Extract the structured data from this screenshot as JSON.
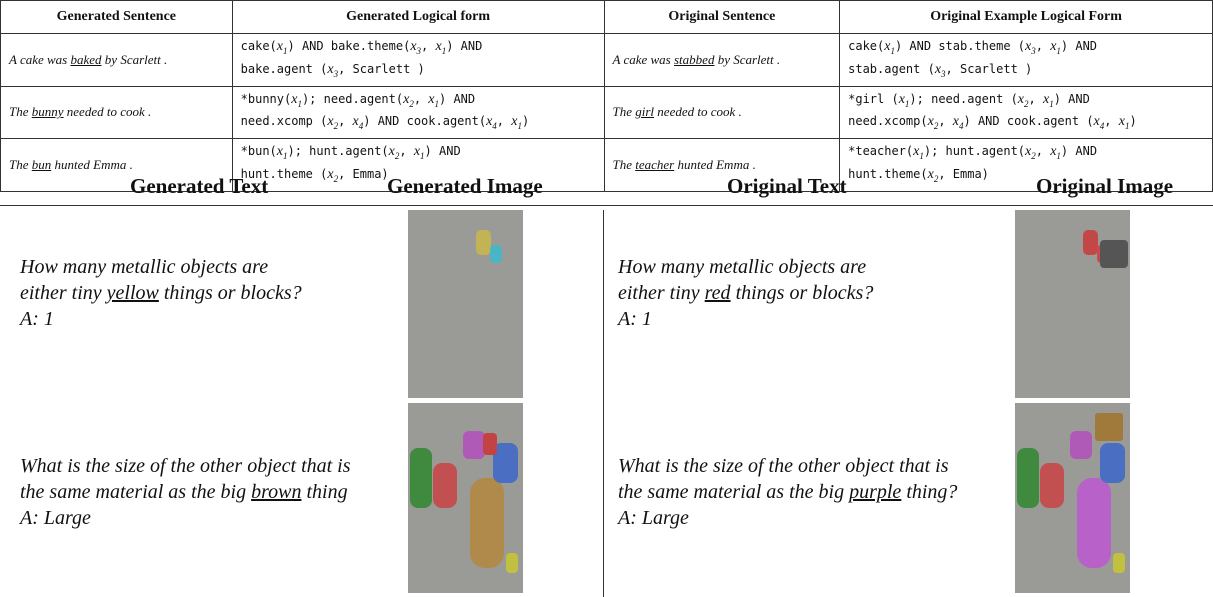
{
  "table": {
    "header": [
      "Generated Sentence",
      "Generated Logical form",
      "Original Sentence",
      "Original Example Logical Form"
    ],
    "rows": [
      {
        "generated_sentence": {
          "before": "A cake was ",
          "underlined": "baked",
          "after": " by Scarlett ."
        },
        "generated_logical_form": [
          [
            "cake(",
            {
              "var": "x",
              "sub": "1"
            },
            ") AND bake.theme(",
            {
              "var": "x",
              "sub": "3"
            },
            ", ",
            {
              "var": "x",
              "sub": "1"
            },
            ") AND"
          ],
          [
            "bake.agent (",
            {
              "var": "x",
              "sub": "3"
            },
            ", Scarlett )"
          ]
        ],
        "original_sentence": {
          "before": "A cake was ",
          "underlined": "stabbed",
          "after": " by Scarlett ."
        },
        "original_logical_form": [
          [
            "cake(",
            {
              "var": "x",
              "sub": "1"
            },
            ") AND stab.theme (",
            {
              "var": "x",
              "sub": "3"
            },
            ", ",
            {
              "var": "x",
              "sub": "1"
            },
            ") AND"
          ],
          [
            "stab.agent (",
            {
              "var": "x",
              "sub": "3"
            },
            ", Scarlett )"
          ]
        ]
      },
      {
        "generated_sentence": {
          "before": "The ",
          "underlined": "bunny",
          "after": " needed to cook ."
        },
        "generated_logical_form": [
          [
            "*bunny(",
            {
              "var": "x",
              "sub": "1"
            },
            "); need.agent(",
            {
              "var": "x",
              "sub": "2"
            },
            ", ",
            {
              "var": "x",
              "sub": "1"
            },
            ") AND"
          ],
          [
            "need.xcomp (",
            {
              "var": "x",
              "sub": "2"
            },
            ", ",
            {
              "var": "x",
              "sub": "4"
            },
            ") AND cook.agent(",
            {
              "var": "x",
              "sub": "4"
            },
            ", ",
            {
              "var": "x",
              "sub": "1"
            },
            ")"
          ]
        ],
        "original_sentence": {
          "before": "The ",
          "underlined": "girl",
          "after": " needed to cook ."
        },
        "original_logical_form": [
          [
            "*girl (",
            {
              "var": "x",
              "sub": "1"
            },
            "); need.agent (",
            {
              "var": "x",
              "sub": "2"
            },
            ", ",
            {
              "var": "x",
              "sub": "1"
            },
            ") AND"
          ],
          [
            "need.xcomp(",
            {
              "var": "x",
              "sub": "2"
            },
            ", ",
            {
              "var": "x",
              "sub": "4"
            },
            ") AND cook.agent (",
            {
              "var": "x",
              "sub": "4"
            },
            ", ",
            {
              "var": "x",
              "sub": "1"
            },
            ")"
          ]
        ]
      },
      {
        "generated_sentence": {
          "before": "The ",
          "underlined": "bun",
          "after": " hunted Emma ."
        },
        "generated_logical_form": [
          [
            "*bun(",
            {
              "var": "x",
              "sub": "1"
            },
            "); hunt.agent(",
            {
              "var": "x",
              "sub": "2"
            },
            ", ",
            {
              "var": "x",
              "sub": "1"
            },
            ") AND"
          ],
          [
            "hunt.theme (",
            {
              "var": "x",
              "sub": "2"
            },
            ", Emma)"
          ]
        ],
        "original_sentence": {
          "before": "The ",
          "underlined": "teacher",
          "after": " hunted Emma ."
        },
        "original_logical_form": [
          [
            "*teacher(",
            {
              "var": "x",
              "sub": "1"
            },
            "); hunt.agent(",
            {
              "var": "x",
              "sub": "2"
            },
            ", ",
            {
              "var": "x",
              "sub": "1"
            },
            ") AND"
          ],
          [
            "hunt.theme(",
            {
              "var": "x",
              "sub": "2"
            },
            ", Emma)"
          ]
        ]
      }
    ]
  },
  "examples": {
    "header": [
      "Generated Text",
      "Generated Image",
      "Original Text",
      "Original Image"
    ],
    "rows": [
      {
        "generated_question": [
          {
            "before": "How many metallic objects are"
          },
          {
            "before": "either tiny ",
            "underlined": "yellow",
            "after": " things or blocks?"
          }
        ],
        "generated_answer": "A: 1",
        "original_question": [
          {
            "before": "How many metallic objects are"
          },
          {
            "before": "either tiny ",
            "underlined": "red",
            "after": " things or blocks?"
          }
        ],
        "original_answer": "A: 1"
      },
      {
        "generated_question": [
          {
            "before": "What is the size of the other object that is"
          },
          {
            "before": "the same material as the big ",
            "underlined": "brown",
            "after": " thing"
          }
        ],
        "generated_answer": "A: Large",
        "original_question": [
          {
            "before": "What is the size of the other object that is"
          },
          {
            "before": "the same material as the big ",
            "underlined": "purple",
            "after": " thing?"
          }
        ],
        "original_answer": "A: Large"
      }
    ]
  }
}
